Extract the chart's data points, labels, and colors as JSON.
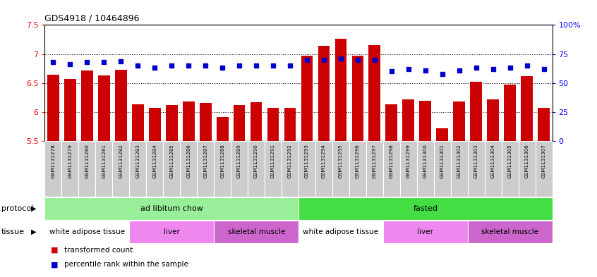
{
  "title": "GDS4918 / 10464896",
  "samples": [
    "GSM1131278",
    "GSM1131279",
    "GSM1131280",
    "GSM1131281",
    "GSM1131282",
    "GSM1131283",
    "GSM1131284",
    "GSM1131285",
    "GSM1131286",
    "GSM1131287",
    "GSM1131288",
    "GSM1131289",
    "GSM1131290",
    "GSM1131291",
    "GSM1131292",
    "GSM1131293",
    "GSM1131294",
    "GSM1131295",
    "GSM1131296",
    "GSM1131297",
    "GSM1131298",
    "GSM1131299",
    "GSM1131300",
    "GSM1131301",
    "GSM1131302",
    "GSM1131303",
    "GSM1131304",
    "GSM1131305",
    "GSM1131306",
    "GSM1131307"
  ],
  "red_values": [
    6.65,
    6.57,
    6.72,
    6.63,
    6.73,
    6.13,
    6.07,
    6.12,
    6.18,
    6.16,
    5.92,
    6.12,
    6.17,
    6.07,
    6.07,
    6.97,
    7.14,
    7.26,
    6.97,
    7.15,
    6.13,
    6.22,
    6.2,
    5.72,
    6.18,
    6.52,
    6.22,
    6.48,
    6.62,
    6.07
  ],
  "blue_percentiles": [
    68,
    66,
    68,
    68,
    69,
    65,
    63,
    65,
    65,
    65,
    63,
    65,
    65,
    65,
    65,
    70,
    70,
    71,
    70,
    70,
    60,
    62,
    61,
    58,
    61,
    63,
    62,
    63,
    65,
    62
  ],
  "ylim_left": [
    5.5,
    7.5
  ],
  "ylim_right": [
    0,
    100
  ],
  "yticks_left": [
    5.5,
    6.0,
    6.5,
    7.0,
    7.5
  ],
  "yticks_right": [
    0,
    25,
    50,
    75,
    100
  ],
  "ytick_labels_left": [
    "5.5",
    "6",
    "6.5",
    "7",
    "7.5"
  ],
  "ytick_labels_right": [
    "0",
    "25",
    "50",
    "75",
    "100%"
  ],
  "bar_color": "#cc0000",
  "dot_color": "#0000cc",
  "background_color": "#ffffff",
  "bar_bottom": 5.5,
  "protocol_groups": [
    {
      "label": "ad libitum chow",
      "start": 0,
      "end": 14,
      "color": "#99ee99"
    },
    {
      "label": "fasted",
      "start": 15,
      "end": 29,
      "color": "#44dd44"
    }
  ],
  "tissue_groups": [
    {
      "label": "white adipose tissue",
      "start": 0,
      "end": 4,
      "color": "#ffffff"
    },
    {
      "label": "liver",
      "start": 5,
      "end": 9,
      "color": "#ee88ee"
    },
    {
      "label": "skeletal muscle",
      "start": 10,
      "end": 14,
      "color": "#cc66cc"
    },
    {
      "label": "white adipose tissue",
      "start": 15,
      "end": 19,
      "color": "#ffffff"
    },
    {
      "label": "liver",
      "start": 20,
      "end": 24,
      "color": "#ee88ee"
    },
    {
      "label": "skeletal muscle",
      "start": 25,
      "end": 29,
      "color": "#cc66cc"
    }
  ],
  "legend_items": [
    {
      "label": "transformed count",
      "color": "#cc0000"
    },
    {
      "label": "percentile rank within the sample",
      "color": "#0000cc"
    }
  ],
  "protocol_label": "protocol",
  "tissue_label": "tissue",
  "cell_bg": "#cccccc",
  "cell_edge": "#ffffff"
}
